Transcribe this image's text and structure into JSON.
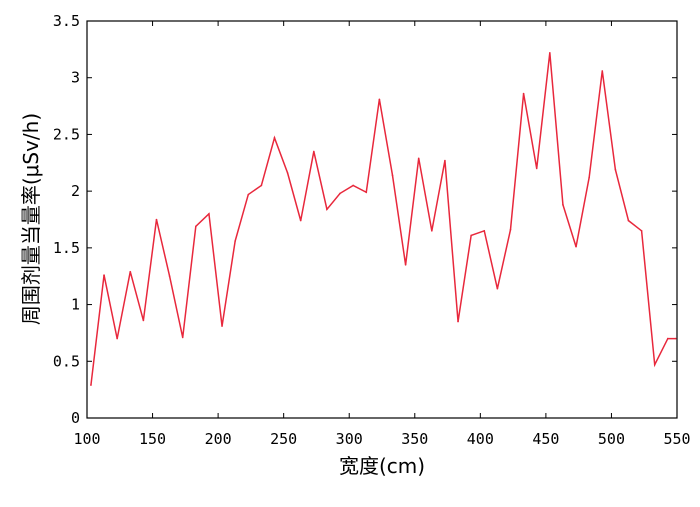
{
  "chart_data": {
    "type": "line",
    "title": "",
    "xlabel": "宽度(cm)",
    "ylabel": "周围剂量当量率(μSv/h)",
    "xlim": [
      100,
      550
    ],
    "ylim": [
      0,
      3.5
    ],
    "xticks": [
      100,
      150,
      200,
      250,
      300,
      350,
      400,
      450,
      500,
      550
    ],
    "xtick_labels": [
      "100",
      "150",
      "200",
      "250",
      "300",
      "350",
      "400",
      "450",
      "500",
      "550"
    ],
    "yticks": [
      0,
      0.5,
      1,
      1.5,
      2,
      2.5,
      3,
      3.5
    ],
    "ytick_labels": [
      "0",
      "0.5",
      "1",
      "1.5",
      "2",
      "2.5",
      "3",
      "3.5"
    ],
    "grid": false,
    "series": [
      {
        "color": "#e8283c",
        "x": [
          103,
          113,
          123,
          133,
          143,
          153,
          163,
          173,
          183,
          193,
          203,
          213,
          223,
          233,
          243,
          253,
          263,
          273,
          283,
          293,
          303,
          313,
          323,
          333,
          343,
          353,
          363,
          373,
          383,
          393,
          403,
          413,
          423,
          433,
          443,
          453,
          463,
          473,
          483,
          493,
          503,
          513,
          523,
          533,
          543,
          549
        ],
        "y": [
          0.29,
          1.26,
          0.7,
          1.29,
          0.86,
          1.75,
          1.25,
          0.71,
          1.69,
          1.8,
          0.81,
          1.56,
          1.97,
          2.05,
          2.47,
          2.16,
          1.74,
          2.35,
          1.84,
          1.98,
          2.05,
          1.99,
          2.81,
          2.14,
          1.35,
          2.29,
          1.65,
          2.27,
          0.85,
          1.61,
          1.65,
          1.14,
          1.66,
          2.86,
          2.2,
          3.22,
          1.88,
          1.51,
          2.12,
          3.06,
          2.19,
          1.74,
          1.65,
          0.47,
          0.7,
          0.7
        ]
      }
    ]
  }
}
